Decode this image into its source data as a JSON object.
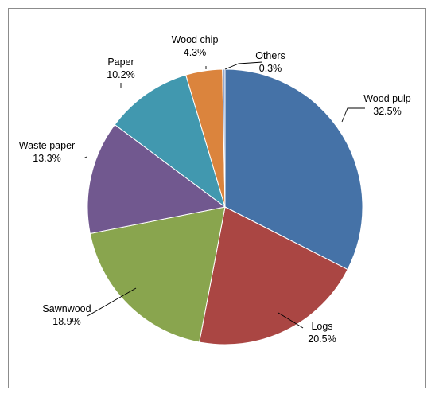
{
  "chart_data": {
    "type": "pie",
    "title": "",
    "slices": [
      {
        "label": "Wood pulp",
        "value": 32.5,
        "value_text": "32.5%",
        "color": "#4572a7"
      },
      {
        "label": "Logs",
        "value": 20.5,
        "value_text": "20.5%",
        "color": "#aa4643"
      },
      {
        "label": "Sawnwood",
        "value": 18.9,
        "value_text": "18.9%",
        "color": "#89a54e"
      },
      {
        "label": "Waste paper",
        "value": 13.3,
        "value_text": "13.3%",
        "color": "#71588f"
      },
      {
        "label": "Paper",
        "value": 10.2,
        "value_text": "10.2%",
        "color": "#4198af"
      },
      {
        "label": "Wood chip",
        "value": 4.3,
        "value_text": "4.3%",
        "color": "#db843d"
      },
      {
        "label": "Others",
        "value": 0.3,
        "value_text": "0.3%",
        "color": "#93a9cf"
      }
    ],
    "start_angle": "12 o'clock",
    "direction": "clockwise",
    "legend": "none"
  }
}
